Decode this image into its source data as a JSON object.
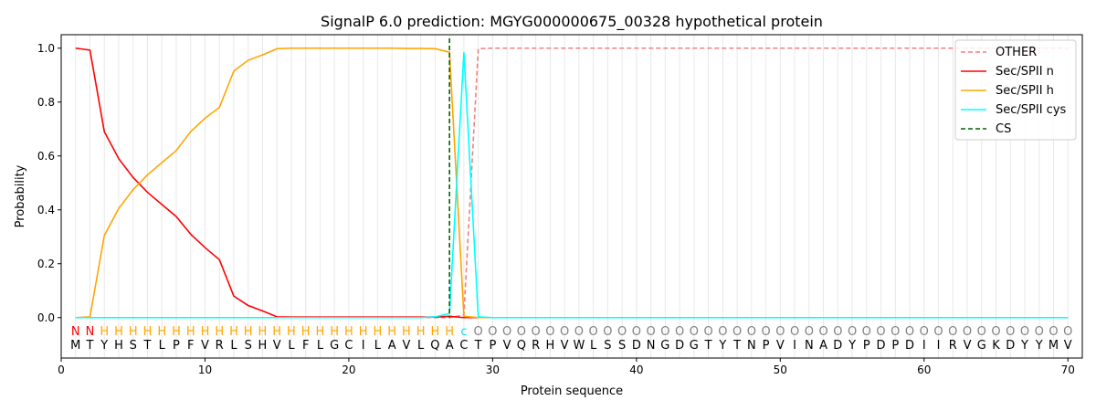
{
  "chart_data": {
    "type": "line",
    "title": "SignalP 6.0 prediction: MGYG000000675_00328 hypothetical protein",
    "xlabel": "Protein sequence",
    "ylabel": "Probability",
    "xlim": [
      0,
      71
    ],
    "ylim": [
      -0.15,
      1.05
    ],
    "xticks": [
      0,
      10,
      20,
      30,
      40,
      50,
      60,
      70
    ],
    "yticks": [
      0.0,
      0.2,
      0.4,
      0.6,
      0.8,
      1.0
    ],
    "legend_position": "top-right",
    "sequence": "MTYHSTLPFVRLSHVLFLGCILAVLQACTPVQRHVWLSSDNGDGTYTNPVINADYPDPDIIRVGKDYYMV",
    "labels": "NNHHHHHHHHHHHHHHHHHHHHHHHHHcOOOOOOOOOOOOOOOOOOOOOOOOOOOOOOOOOOOOOOOOOO",
    "label_colors": {
      "N": "#ff0000",
      "H": "#ffa500",
      "c": "#00e5ee",
      "O": "#808080"
    },
    "cs_position": 27,
    "series": [
      {
        "name": "OTHER",
        "color": "#f08080",
        "dash": true,
        "values": [
          0,
          0,
          0,
          0,
          0,
          0,
          0,
          0,
          0,
          0,
          0,
          0,
          0,
          0,
          0,
          0,
          0,
          0,
          0,
          0,
          0,
          0,
          0,
          0,
          0,
          0,
          0,
          0.01,
          0.998,
          1,
          1,
          1,
          1,
          1,
          1,
          1,
          1,
          1,
          1,
          1,
          1,
          1,
          1,
          1,
          1,
          1,
          1,
          1,
          1,
          1,
          1,
          1,
          1,
          1,
          1,
          1,
          1,
          1,
          1,
          1,
          1,
          1,
          1,
          1,
          1,
          1,
          1,
          1,
          1,
          1
        ]
      },
      {
        "name": "Sec/SPII n",
        "color": "#ff0000",
        "values": [
          1.0,
          0.993,
          0.69,
          0.59,
          0.52,
          0.465,
          0.42,
          0.375,
          0.31,
          0.26,
          0.215,
          0.08,
          0.045,
          0.025,
          0.003,
          0.002,
          0.002,
          0.002,
          0.002,
          0.002,
          0.002,
          0.002,
          0.002,
          0.002,
          0.002,
          0.002,
          0.005,
          0,
          0,
          0,
          0,
          0,
          0,
          0,
          0,
          0,
          0,
          0,
          0,
          0,
          0,
          0,
          0,
          0,
          0,
          0,
          0,
          0,
          0,
          0,
          0,
          0,
          0,
          0,
          0,
          0,
          0,
          0,
          0,
          0,
          0,
          0,
          0,
          0,
          0,
          0,
          0,
          0,
          0,
          0
        ]
      },
      {
        "name": "Sec/SPII h",
        "color": "#ffa500",
        "values": [
          0,
          0.003,
          0.305,
          0.405,
          0.475,
          0.53,
          0.575,
          0.62,
          0.69,
          0.74,
          0.78,
          0.915,
          0.955,
          0.975,
          0.998,
          1.0,
          1.0,
          1.0,
          1.0,
          1.0,
          1.0,
          1.0,
          1.0,
          0.999,
          0.999,
          0.998,
          0.985,
          0.005,
          0,
          0,
          0,
          0,
          0,
          0,
          0,
          0,
          0,
          0,
          0,
          0,
          0,
          0,
          0,
          0,
          0,
          0,
          0,
          0,
          0,
          0,
          0,
          0,
          0,
          0,
          0,
          0,
          0,
          0,
          0,
          0,
          0,
          0,
          0,
          0,
          0,
          0,
          0,
          0,
          0,
          0
        ]
      },
      {
        "name": "Sec/SPII cys",
        "color": "#00ffff",
        "values": [
          0,
          0,
          0,
          0,
          0,
          0,
          0,
          0,
          0,
          0,
          0,
          0,
          0,
          0,
          0,
          0,
          0,
          0,
          0,
          0,
          0,
          0,
          0,
          0,
          0,
          0.003,
          0.015,
          0.985,
          0.003,
          0,
          0,
          0,
          0,
          0,
          0,
          0,
          0,
          0,
          0,
          0,
          0,
          0,
          0,
          0,
          0,
          0,
          0,
          0,
          0,
          0,
          0,
          0,
          0,
          0,
          0,
          0,
          0,
          0,
          0,
          0,
          0,
          0,
          0,
          0,
          0,
          0,
          0,
          0,
          0,
          0
        ]
      },
      {
        "name": "CS",
        "color": "#006400",
        "dash": true
      }
    ]
  }
}
